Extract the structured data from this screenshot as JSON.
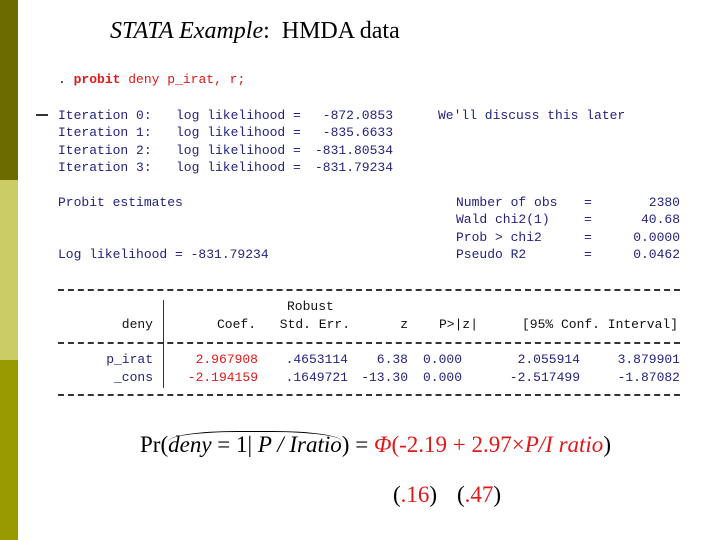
{
  "title": {
    "italic": "STATA Example",
    "rest": ":  HMDA data"
  },
  "command": {
    "prompt": ".",
    "keyword": "probit",
    "args": "deny p_irat, r;"
  },
  "iterations": [
    {
      "label": "Iteration 0:",
      "text": "log likelihood =",
      "value": "-872.0853"
    },
    {
      "label": "Iteration 1:",
      "text": "log likelihood =",
      "value": "-835.6633"
    },
    {
      "label": "Iteration 2:",
      "text": "log likelihood =",
      "value": "-831.80534"
    },
    {
      "label": "Iteration 3:",
      "text": "log likelihood =",
      "value": "-831.79234"
    }
  ],
  "note": "We'll discuss this later",
  "summary_left": {
    "title": "Probit estimates",
    "loglik": "Log likelihood = -831.79234"
  },
  "summary_right": [
    {
      "label": "Number of obs",
      "eq": "=",
      "value": "2380"
    },
    {
      "label": "Wald chi2(1)",
      "eq": "=",
      "value": "40.68"
    },
    {
      "label": "Prob > chi2",
      "eq": "=",
      "value": "0.0000"
    },
    {
      "label": "Pseudo R2",
      "eq": "=",
      "value": "0.0462"
    }
  ],
  "table": {
    "header_top": "Robust",
    "headers": [
      "deny",
      "Coef.",
      "Std. Err.",
      "z",
      "P>|z|",
      "[95% Conf. Interval]"
    ],
    "rows": [
      [
        "p_irat",
        "2.967908",
        ".4653114",
        "6.38",
        "0.000",
        "2.055914",
        "3.879901"
      ],
      [
        "_cons",
        "-2.194159",
        ".1649721",
        "-13.30",
        "0.000",
        "-2.517499",
        "-1.87082"
      ]
    ]
  },
  "equation": {
    "left": [
      "Pr(",
      "deny",
      " = 1| ",
      "P / Iratio",
      ") = "
    ],
    "right": [
      "Φ",
      "(-2.19 + 2.97×",
      "P/I ratio",
      ")"
    ]
  },
  "standard_errors": [
    {
      "open": "(",
      "value": ".16",
      "close": ")"
    },
    {
      "open": "(",
      "value": ".47",
      "close": ")"
    }
  ]
}
